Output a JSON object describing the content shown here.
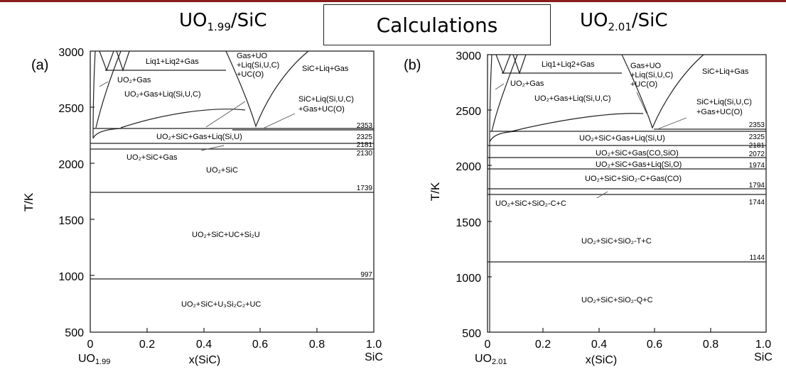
{
  "header": {
    "left_base": "UO",
    "left_sub": "1.99",
    "left_tail": "/SiC",
    "center": "Calculations",
    "right_base": "UO",
    "right_sub": "2.01",
    "right_tail": "/SiC",
    "bar_color": "#8b1a1a"
  },
  "axes": {
    "ylabel": "T/K",
    "xlabel": "x(SiC)",
    "y_ticks": [
      "3000",
      "2500",
      "2000",
      "1500",
      "1000",
      "500"
    ],
    "x_ticks": [
      "0",
      "0.2",
      "0.4",
      "0.6",
      "0.8",
      "1.0"
    ],
    "right_end": "SiC"
  },
  "panel_a": {
    "label": "(a)",
    "left_base": "UO",
    "left_sub": "1.99",
    "temps": [
      "2353",
      "2325",
      "2181",
      "2130",
      "1739",
      "997"
    ],
    "regions": {
      "liq_gas": "Liq1+Liq2+Gas",
      "gas_uo2_1": "Gas+UO",
      "gas_uo2_2": "+Liq(Si,U,C)",
      "gas_uo2_3": "+UC(O)",
      "sic_liq_gas": "SiC+Liq+Gas",
      "uo2_gas": "UO₂+Gas",
      "uo2_gas_liq": "UO₂+Gas+Liq(Si,U,C)",
      "sic_liq_1": "SiC+Liq(Si,U,C)",
      "sic_liq_2": "+Gas+UC(O)",
      "uo2_sic_gas_liq": "UO₂+SiC+Gas+Liq(Si,U)",
      "uo2_sic_gas": "UO₂+SiC+Gas",
      "uo2_sic": "UO₂+SiC",
      "uo2_sic_uc_si2u": "UO₂+SiC+UC+Si₂U",
      "uo2_sic_u3si2c2_uc": "UO₂+SiC+U₃Si₂C₂+UC"
    }
  },
  "panel_b": {
    "label": "(b)",
    "left_base": "UO",
    "left_sub": "2.01",
    "temps": [
      "2353",
      "2325",
      "2181",
      "2072",
      "1974",
      "1794",
      "1744",
      "1144"
    ],
    "regions": {
      "liq_gas": "Liq1+Liq2+Gas",
      "gas_uo2_1": "Gas+UO",
      "gas_uo2_2": "+Liq(Si,U,C)",
      "gas_uo2_3": "+UC(O)",
      "sic_liq_gas": "SiC+Liq+Gas",
      "uo2_gas": "UO₂+Gas",
      "uo2_gas_liq": "UO₂+Gas+Liq(Si,U,C)",
      "sic_liq_1": "SiC+Liq(Si,U,C)",
      "sic_liq_2": "+Gas+UC(O)",
      "uo2_sic_gas_liq": "UO₂+SiC+Gas+Liq(Si,U)",
      "uo2_sic_gas_co_sio": "UO₂+SiC+Gas(CO,SiO)",
      "uo2_sic_gas_liq_sio": "UO₂+SiC+Gas+Liq(Si,O)",
      "uo2_sic_sio2c_gas": "UO₂+SiC+SiO₂-C+Gas(CO)",
      "uo2_sic_sio2c_c": "UO₂+SiC+SiO₂-C+C",
      "uo2_sic_sio2t_c": "UO₂+SiC+SiO₂-T+C",
      "uo2_sic_sio2q_c": "UO₂+SiC+SiO₂-Q+C"
    }
  }
}
